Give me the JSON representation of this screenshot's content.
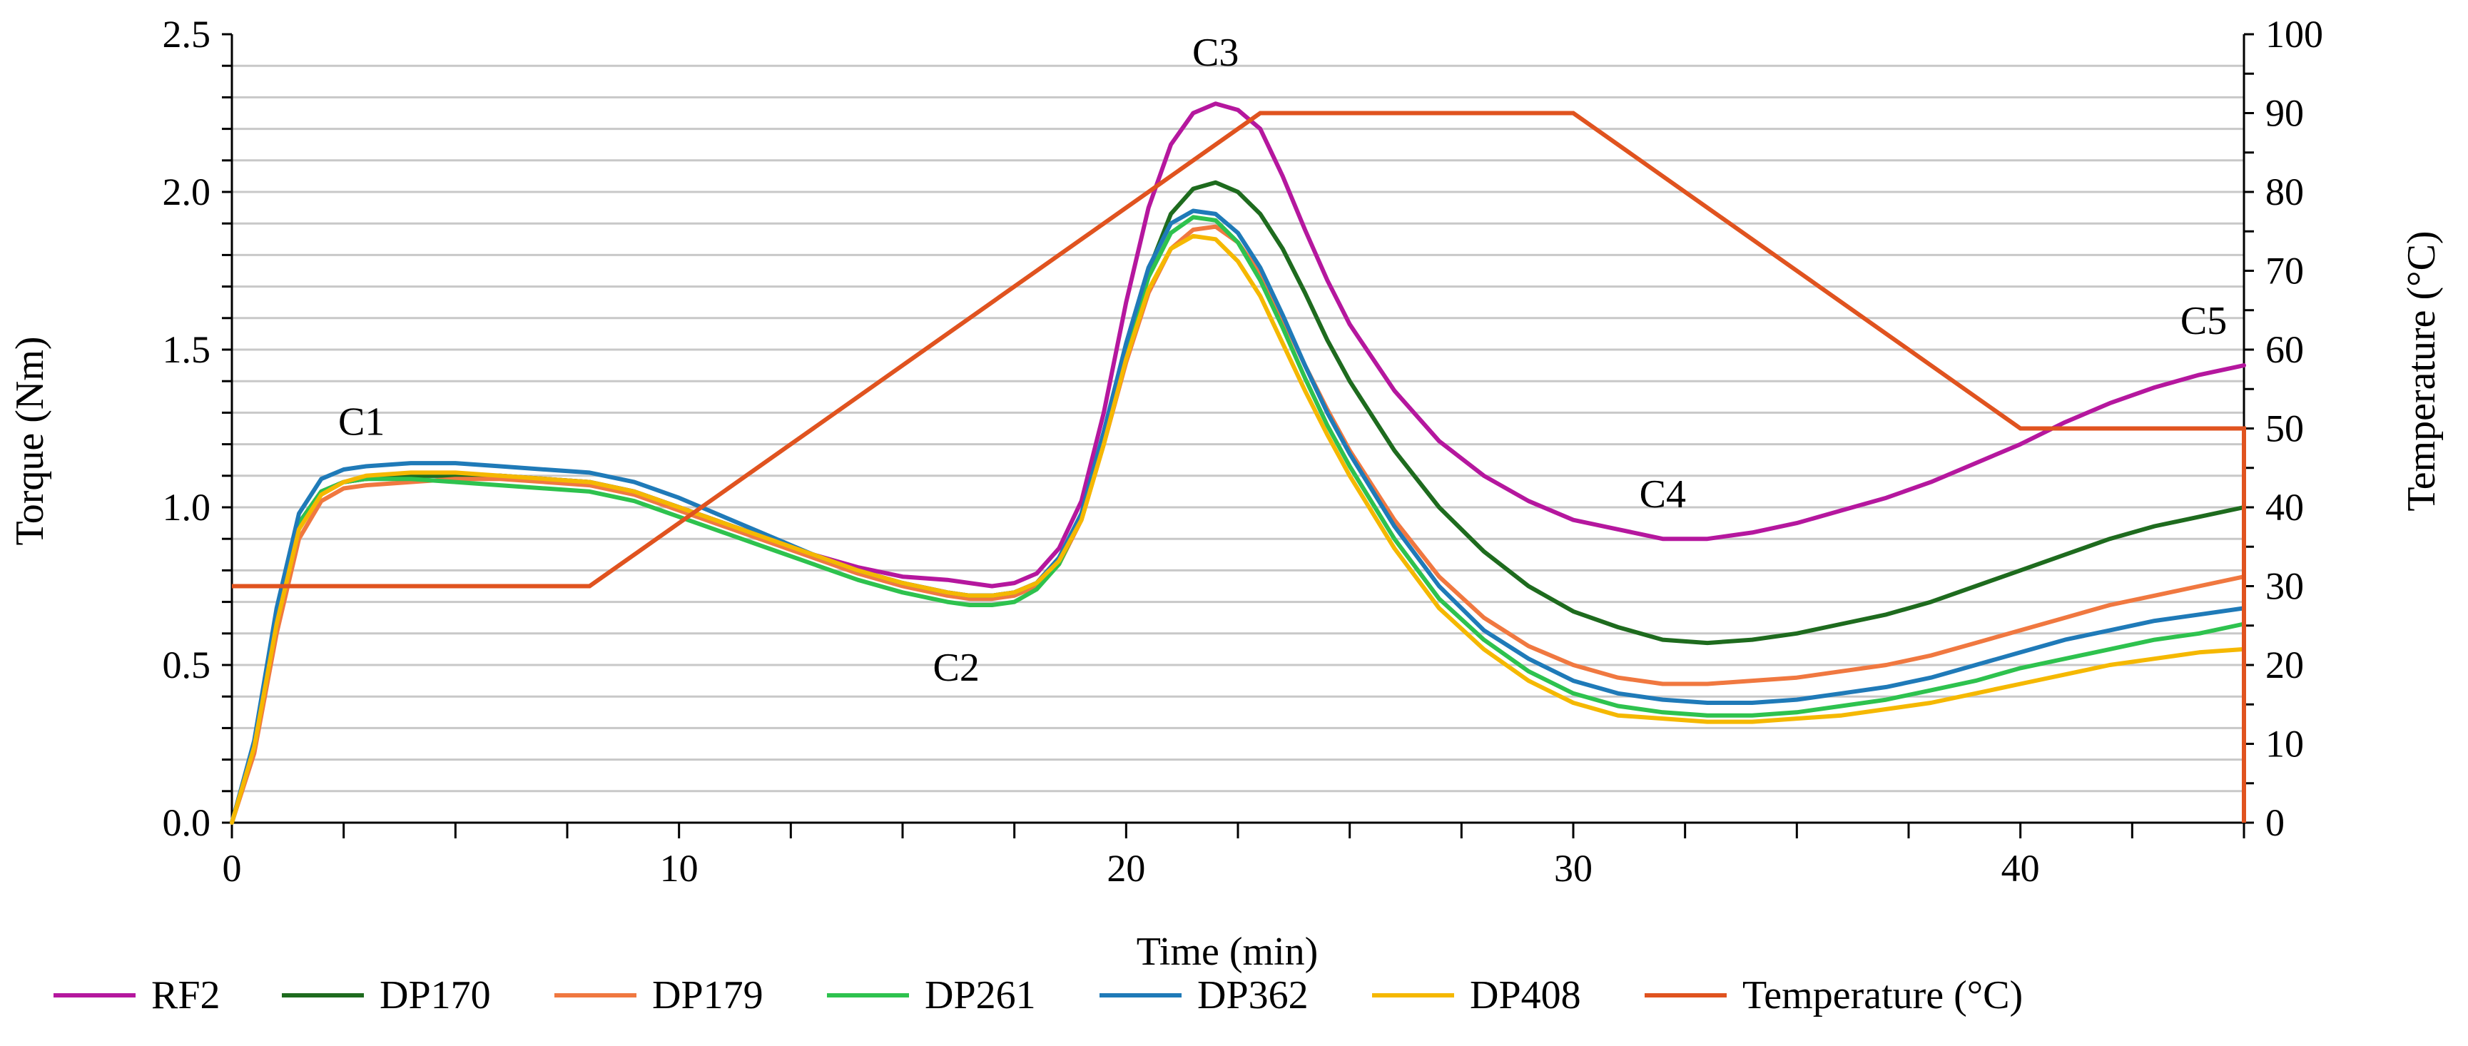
{
  "chart_data": {
    "type": "line",
    "xlabel": "Time (min)",
    "ylabel": "Torque (Nm)",
    "y2label": "Temperature (°C)",
    "xlim": [
      0,
      45
    ],
    "ylim": [
      0,
      2.5
    ],
    "y2lim": [
      0,
      100
    ],
    "xticks": [
      0,
      10,
      20,
      30,
      40
    ],
    "yticks": [
      0.0,
      0.5,
      1.0,
      1.5,
      2.0,
      2.5
    ],
    "ytick_labels": [
      "0.0",
      "0.5",
      "1.0",
      "1.5",
      "2.0",
      "2.5"
    ],
    "y2ticks": [
      0,
      10,
      20,
      30,
      40,
      50,
      60,
      70,
      80,
      90,
      100
    ],
    "grid": true,
    "legend_position": "bottom",
    "x": [
      0,
      0.5,
      1,
      1.5,
      2,
      2.5,
      3,
      4,
      5,
      6,
      7,
      8,
      9,
      10,
      11,
      12,
      13,
      14,
      15,
      16,
      16.5,
      17,
      17.5,
      18,
      18.5,
      19,
      19.5,
      20,
      20.5,
      21,
      21.5,
      22,
      22.5,
      23,
      23.5,
      24,
      24.5,
      25,
      26,
      27,
      28,
      29,
      30,
      31,
      32,
      33,
      34,
      35,
      36,
      37,
      38,
      39,
      40,
      41,
      42,
      43,
      44,
      45
    ],
    "series": [
      {
        "name": "RF2",
        "color": "#B5179E",
        "values": [
          0,
          0.25,
          0.65,
          0.95,
          1.05,
          1.08,
          1.09,
          1.1,
          1.1,
          1.1,
          1.09,
          1.08,
          1.05,
          1.0,
          0.95,
          0.9,
          0.85,
          0.81,
          0.78,
          0.77,
          0.76,
          0.75,
          0.76,
          0.79,
          0.87,
          1.02,
          1.3,
          1.65,
          1.95,
          2.15,
          2.25,
          2.28,
          2.26,
          2.2,
          2.05,
          1.88,
          1.72,
          1.58,
          1.37,
          1.21,
          1.1,
          1.02,
          0.96,
          0.93,
          0.9,
          0.9,
          0.92,
          0.95,
          0.99,
          1.03,
          1.08,
          1.14,
          1.2,
          1.27,
          1.33,
          1.38,
          1.42,
          1.45
        ]
      },
      {
        "name": "DP170",
        "color": "#1E6B1E",
        "values": [
          0,
          0.25,
          0.65,
          0.95,
          1.05,
          1.08,
          1.09,
          1.1,
          1.1,
          1.1,
          1.09,
          1.08,
          1.05,
          1.0,
          0.95,
          0.9,
          0.85,
          0.8,
          0.76,
          0.73,
          0.72,
          0.72,
          0.73,
          0.76,
          0.84,
          0.98,
          1.22,
          1.5,
          1.75,
          1.93,
          2.01,
          2.03,
          2.0,
          1.93,
          1.82,
          1.68,
          1.53,
          1.4,
          1.18,
          1.0,
          0.86,
          0.75,
          0.67,
          0.62,
          0.58,
          0.57,
          0.58,
          0.6,
          0.63,
          0.66,
          0.7,
          0.75,
          0.8,
          0.85,
          0.9,
          0.94,
          0.97,
          1.0
        ]
      },
      {
        "name": "DP179",
        "color": "#F07840",
        "values": [
          0,
          0.22,
          0.6,
          0.9,
          1.02,
          1.06,
          1.07,
          1.08,
          1.09,
          1.09,
          1.08,
          1.07,
          1.04,
          0.99,
          0.94,
          0.89,
          0.84,
          0.79,
          0.75,
          0.72,
          0.71,
          0.71,
          0.72,
          0.75,
          0.82,
          0.96,
          1.2,
          1.46,
          1.68,
          1.82,
          1.88,
          1.89,
          1.84,
          1.74,
          1.6,
          1.45,
          1.31,
          1.18,
          0.96,
          0.78,
          0.65,
          0.56,
          0.5,
          0.46,
          0.44,
          0.44,
          0.45,
          0.46,
          0.48,
          0.5,
          0.53,
          0.57,
          0.61,
          0.65,
          0.69,
          0.72,
          0.75,
          0.78
        ]
      },
      {
        "name": "DP261",
        "color": "#2EC24E",
        "values": [
          0,
          0.25,
          0.66,
          0.95,
          1.05,
          1.08,
          1.09,
          1.09,
          1.08,
          1.07,
          1.06,
          1.05,
          1.02,
          0.97,
          0.92,
          0.87,
          0.82,
          0.77,
          0.73,
          0.7,
          0.69,
          0.69,
          0.7,
          0.74,
          0.82,
          0.97,
          1.22,
          1.5,
          1.73,
          1.87,
          1.92,
          1.91,
          1.84,
          1.72,
          1.57,
          1.41,
          1.26,
          1.13,
          0.9,
          0.71,
          0.58,
          0.48,
          0.41,
          0.37,
          0.35,
          0.34,
          0.34,
          0.35,
          0.37,
          0.39,
          0.42,
          0.45,
          0.49,
          0.52,
          0.55,
          0.58,
          0.6,
          0.63
        ]
      },
      {
        "name": "DP362",
        "color": "#1F7AB8",
        "values": [
          0,
          0.26,
          0.68,
          0.98,
          1.09,
          1.12,
          1.13,
          1.14,
          1.14,
          1.13,
          1.12,
          1.11,
          1.08,
          1.03,
          0.97,
          0.91,
          0.85,
          0.8,
          0.76,
          0.73,
          0.72,
          0.72,
          0.73,
          0.76,
          0.84,
          0.98,
          1.24,
          1.52,
          1.76,
          1.9,
          1.94,
          1.93,
          1.87,
          1.76,
          1.61,
          1.45,
          1.3,
          1.17,
          0.94,
          0.75,
          0.61,
          0.52,
          0.45,
          0.41,
          0.39,
          0.38,
          0.38,
          0.39,
          0.41,
          0.43,
          0.46,
          0.5,
          0.54,
          0.58,
          0.61,
          0.64,
          0.66,
          0.68
        ]
      },
      {
        "name": "DP408",
        "color": "#F5B800",
        "values": [
          0,
          0.24,
          0.63,
          0.93,
          1.04,
          1.08,
          1.1,
          1.11,
          1.11,
          1.1,
          1.09,
          1.08,
          1.05,
          1.0,
          0.95,
          0.9,
          0.85,
          0.8,
          0.76,
          0.73,
          0.72,
          0.72,
          0.73,
          0.76,
          0.83,
          0.96,
          1.2,
          1.47,
          1.69,
          1.82,
          1.86,
          1.85,
          1.78,
          1.67,
          1.52,
          1.37,
          1.23,
          1.1,
          0.87,
          0.68,
          0.55,
          0.45,
          0.38,
          0.34,
          0.33,
          0.32,
          0.32,
          0.33,
          0.34,
          0.36,
          0.38,
          0.41,
          0.44,
          0.47,
          0.5,
          0.52,
          0.54,
          0.55
        ]
      }
    ],
    "temperature": {
      "name": "Temperature (°C)",
      "color": "#E0531F",
      "axis": "right",
      "x": [
        0,
        8,
        23,
        30,
        40,
        45,
        45
      ],
      "values": [
        30,
        30,
        90,
        90,
        50,
        50,
        0
      ]
    },
    "annotations": [
      {
        "text": "C1",
        "x": 2.9,
        "y": 1.23
      },
      {
        "text": "C2",
        "x": 16.2,
        "y": 0.45
      },
      {
        "text": "C3",
        "x": 22.0,
        "y": 2.4
      },
      {
        "text": "C4",
        "x": 32.0,
        "y": 1.0
      },
      {
        "text": "C5",
        "x": 44.1,
        "y": 1.55
      }
    ],
    "legend": [
      "RF2",
      "DP170",
      "DP179",
      "DP261",
      "DP362",
      "DP408",
      "Temperature (°C)"
    ]
  }
}
